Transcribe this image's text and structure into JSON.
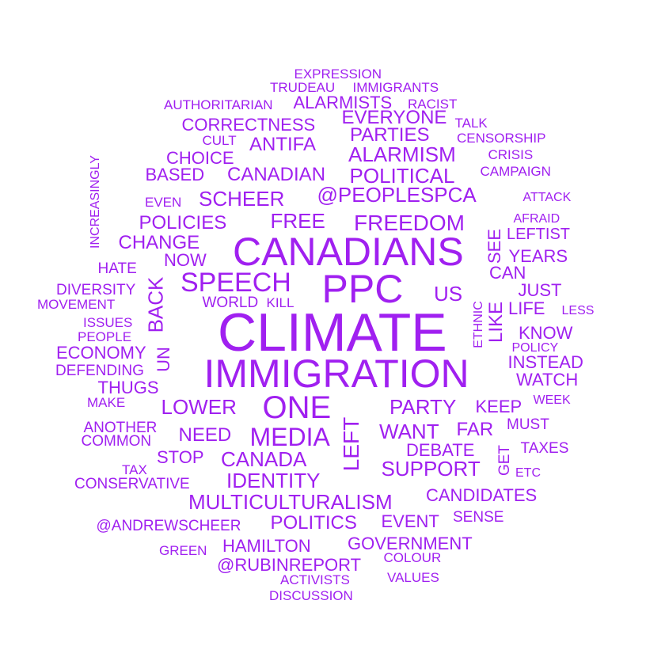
{
  "color": "#a020f0",
  "words": [
    "CLIMATE",
    "IMMIGRATION",
    "CANADIANS",
    "PPC",
    "SPEECH",
    "ONE",
    "MEDIA",
    "FREEDOM",
    "POLITICAL",
    "@PEOPLESPCA",
    "SCHEER",
    "CANADIAN",
    "ALARMISM",
    "ANTIFA",
    "FREE",
    "POLICIES",
    "CHANGE",
    "LOWER",
    "PARTY",
    "WANT",
    "SUPPORT",
    "IDENTITY",
    "CANADA",
    "MULTICULTURALISM",
    "POLITICS",
    "GOVERNMENT",
    "HAMILTON",
    "@RUBINREPORT",
    "NEED",
    "STOP",
    "LEFT",
    "BACK",
    "UN",
    "US",
    "LIKE",
    "FAR",
    "KEEP",
    "INSTEAD",
    "WATCH",
    "KNOW",
    "JUST",
    "LIFE",
    "YEARS",
    "CAN",
    "SEE",
    "LEFTIST",
    "AFRAID",
    "ATTACK",
    "CAMPAIGN",
    "CRISIS",
    "CENSORSHIP",
    "TALK",
    "PARTIES",
    "EVERYONE",
    "ALARMISTS",
    "RACIST",
    "IMMIGRANTS",
    "TRUDEAU",
    "EXPRESSION",
    "AUTHORITARIAN",
    "CORRECTNESS",
    "CULT",
    "CHOICE",
    "BASED",
    "EVEN",
    "INCREASINGLY",
    "HATE",
    "NOW",
    "DIVERSITY",
    "MOVEMENT",
    "ISSUES",
    "PEOPLE",
    "ECONOMY",
    "DEFENDING",
    "THUGS",
    "MAKE",
    "ANOTHER",
    "COMMON",
    "TAX",
    "CONSERVATIVE",
    "@ANDREWSCHEER",
    "GREEN",
    "ACTIVISTS",
    "DISCUSSION",
    "VALUES",
    "COLOUR",
    "SENSE",
    "EVENT",
    "CANDIDATES",
    "DEBATE",
    "GET",
    "ETC",
    "TAXES",
    "MUST",
    "WEEK",
    "POLICY",
    "ETHNIC",
    "LESS",
    "WORLD",
    "KILL"
  ]
}
